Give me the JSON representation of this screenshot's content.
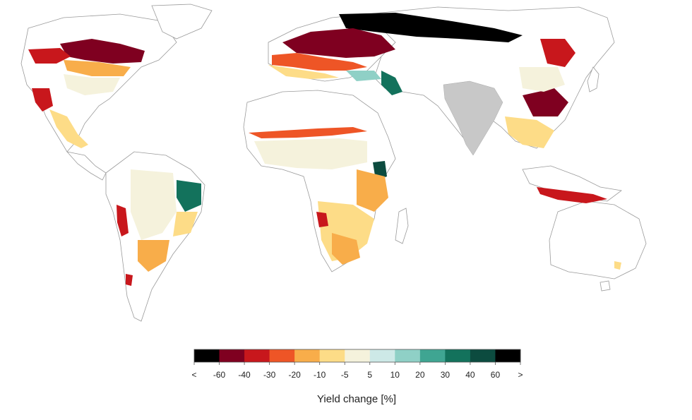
{
  "legend": {
    "title": "Yield change [%]",
    "tick_labels": [
      "<",
      "-60",
      "-40",
      "-30",
      "-20",
      "-10",
      "-5",
      "5",
      "10",
      "20",
      "30",
      "40",
      "60",
      ">"
    ],
    "bins": [
      {
        "range": "< -60",
        "color": "#000000"
      },
      {
        "range": "-60 to -40",
        "color": "#7f0020"
      },
      {
        "range": "-40 to -30",
        "color": "#c8171c"
      },
      {
        "range": "-30 to -20",
        "color": "#ee5526"
      },
      {
        "range": "-20 to -10",
        "color": "#f8ad4a"
      },
      {
        "range": "-10 to -5",
        "color": "#fddc87"
      },
      {
        "range": "-5 to 5",
        "color": "#f5f2dc"
      },
      {
        "range": "5 to 10",
        "color": "#cde9e7"
      },
      {
        "range": "10 to 20",
        "color": "#8fd0c6"
      },
      {
        "range": "20 to 30",
        "color": "#3fa592"
      },
      {
        "range": "30 to 40",
        "color": "#13725c"
      },
      {
        "range": "40 to 60",
        "color": "#0c4b3f"
      },
      {
        "range": "> 60",
        "color": "#000000"
      }
    ]
  },
  "map": {
    "no_data_color": "#c8c8c8",
    "land_outline_color": "#8a8a8a"
  }
}
